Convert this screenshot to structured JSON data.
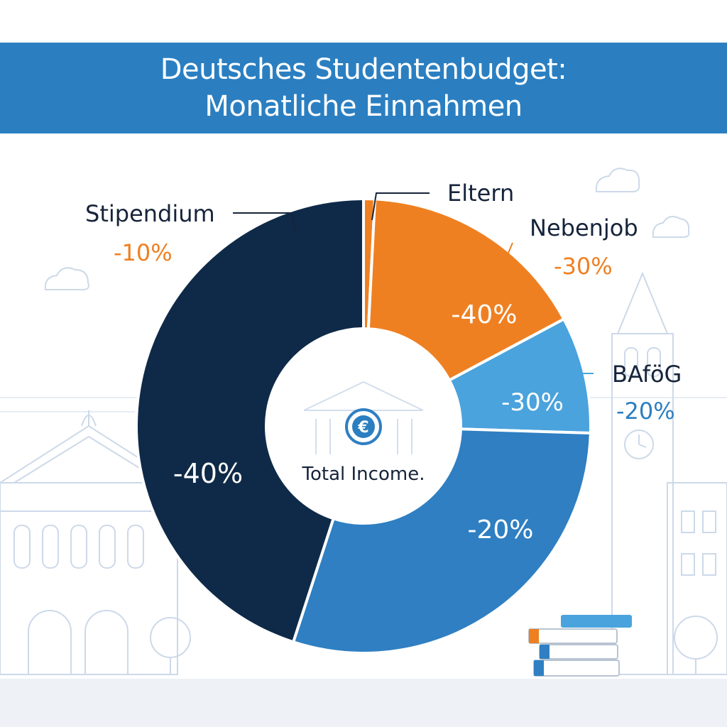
{
  "title": {
    "line1": "Deutsches Studentenbudget:",
    "line2": "Monatliche Einnahmen"
  },
  "center": {
    "icon": "euro-coin-icon",
    "text": "Total Income."
  },
  "colors": {
    "banner": "#2b7fc1",
    "navy": "#0f2a48",
    "orange": "#ef8022",
    "light_blue": "#4aa3dd",
    "mid_blue": "#2f7fc2",
    "label_dark": "#16243a",
    "sketch": "#c9d7e8"
  },
  "chart_data": {
    "type": "donut",
    "slices": [
      {
        "name": "Eltern",
        "pct_of_circle": 0.8,
        "color": "#ef8022",
        "inner_label": "",
        "outer_label": "Eltern",
        "outer_value": ""
      },
      {
        "name": "Nebenjob",
        "pct_of_circle": 16.4,
        "color": "#ef8022",
        "inner_label": "-40%",
        "outer_label": "Nebenjob",
        "outer_value": "-30%"
      },
      {
        "name": "BAföG",
        "pct_of_circle": 8.3,
        "color": "#4aa3dd",
        "inner_label": "-30%",
        "outer_label": "BAföG",
        "outer_value": "-20%"
      },
      {
        "name": "",
        "pct_of_circle": 29.5,
        "color": "#2f7fc2",
        "inner_label": "-20%",
        "outer_label": "",
        "outer_value": ""
      },
      {
        "name": "Stipendium",
        "pct_of_circle": 45.0,
        "color": "#0f2a48",
        "inner_label": "-40%",
        "outer_label": "Stipendium",
        "outer_value": "-10%"
      }
    ]
  }
}
